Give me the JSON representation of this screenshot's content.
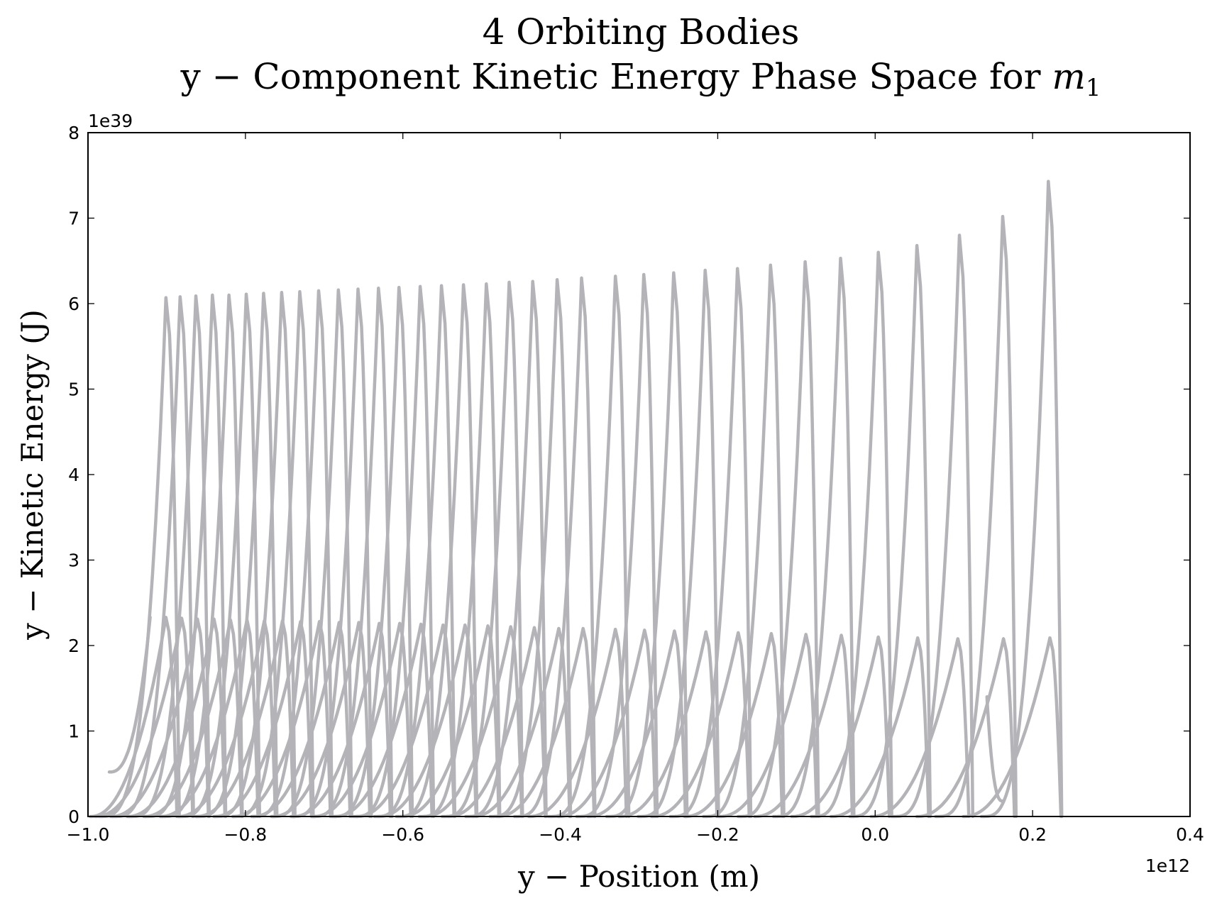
{
  "chart_data": {
    "type": "line",
    "title": "4 Orbiting Bodies",
    "subtitle_prefix": "y − Component Kinetic Energy Phase Space for ",
    "subtitle_var": "m",
    "subtitle_sub": "1",
    "xlabel": "y − Position (m)",
    "ylabel": "y − Kinetic Energy (J)",
    "x_offset_label": "1e12",
    "y_offset_label": "1e39",
    "x_scale": 1000000000000.0,
    "y_scale": 1e+39,
    "xlim": [
      -1.0,
      0.4
    ],
    "ylim": [
      0,
      8
    ],
    "x_ticks": [
      -1.0,
      -0.8,
      -0.6,
      -0.4,
      -0.2,
      0.0,
      0.2,
      0.4
    ],
    "x_tick_labels": [
      "−1.0",
      "−0.8",
      "−0.6",
      "−0.4",
      "−0.2",
      "0.0",
      "0.2",
      "0.4"
    ],
    "y_ticks": [
      0,
      1,
      2,
      3,
      4,
      5,
      6,
      7,
      8
    ],
    "y_tick_labels": [
      "0",
      "1",
      "2",
      "3",
      "4",
      "5",
      "6",
      "7",
      "8"
    ],
    "grid": false,
    "legend": "none",
    "color": "#b3b3b8",
    "series": [
      {
        "tall_peaks": [
          {
            "x": -0.901,
            "y": 6.07
          },
          {
            "x": -0.883,
            "y": 6.08
          },
          {
            "x": -0.863,
            "y": 6.09
          },
          {
            "x": -0.842,
            "y": 6.1
          },
          {
            "x": -0.821,
            "y": 6.1
          },
          {
            "x": -0.799,
            "y": 6.11
          },
          {
            "x": -0.777,
            "y": 6.12
          },
          {
            "x": -0.754,
            "y": 6.13
          },
          {
            "x": -0.731,
            "y": 6.14
          },
          {
            "x": -0.707,
            "y": 6.15
          },
          {
            "x": -0.682,
            "y": 6.16
          },
          {
            "x": -0.657,
            "y": 6.17
          },
          {
            "x": -0.631,
            "y": 6.18
          },
          {
            "x": -0.605,
            "y": 6.19
          },
          {
            "x": -0.578,
            "y": 6.2
          },
          {
            "x": -0.551,
            "y": 6.21
          },
          {
            "x": -0.523,
            "y": 6.22
          },
          {
            "x": -0.494,
            "y": 6.23
          },
          {
            "x": -0.465,
            "y": 6.25
          },
          {
            "x": -0.435,
            "y": 6.26
          },
          {
            "x": -0.404,
            "y": 6.28
          },
          {
            "x": -0.373,
            "y": 6.3
          },
          {
            "x": -0.33,
            "y": 6.32
          },
          {
            "x": -0.294,
            "y": 6.34
          },
          {
            "x": -0.256,
            "y": 6.36
          },
          {
            "x": -0.216,
            "y": 6.39
          },
          {
            "x": -0.175,
            "y": 6.41
          },
          {
            "x": -0.133,
            "y": 6.45
          },
          {
            "x": -0.089,
            "y": 6.49
          },
          {
            "x": -0.044,
            "y": 6.53
          },
          {
            "x": 0.004,
            "y": 6.6
          },
          {
            "x": 0.053,
            "y": 6.68
          },
          {
            "x": 0.107,
            "y": 6.8
          },
          {
            "x": 0.162,
            "y": 7.02
          },
          {
            "x": 0.22,
            "y": 7.43
          }
        ],
        "short_peaks": [
          {
            "x": -0.901,
            "y": 2.33
          },
          {
            "x": -0.881,
            "y": 2.32
          },
          {
            "x": -0.861,
            "y": 2.31
          },
          {
            "x": -0.84,
            "y": 2.31
          },
          {
            "x": -0.819,
            "y": 2.3
          },
          {
            "x": -0.798,
            "y": 2.3
          },
          {
            "x": -0.776,
            "y": 2.29
          },
          {
            "x": -0.753,
            "y": 2.29
          },
          {
            "x": -0.73,
            "y": 2.28
          },
          {
            "x": -0.706,
            "y": 2.28
          },
          {
            "x": -0.681,
            "y": 2.27
          },
          {
            "x": -0.656,
            "y": 2.27
          },
          {
            "x": -0.63,
            "y": 2.26
          },
          {
            "x": -0.604,
            "y": 2.26
          },
          {
            "x": -0.577,
            "y": 2.25
          },
          {
            "x": -0.549,
            "y": 2.24
          },
          {
            "x": -0.521,
            "y": 2.24
          },
          {
            "x": -0.492,
            "y": 2.23
          },
          {
            "x": -0.463,
            "y": 2.22
          },
          {
            "x": -0.433,
            "y": 2.21
          },
          {
            "x": -0.402,
            "y": 2.2
          },
          {
            "x": -0.371,
            "y": 2.2
          },
          {
            "x": -0.33,
            "y": 2.19
          },
          {
            "x": -0.293,
            "y": 2.18
          },
          {
            "x": -0.255,
            "y": 2.17
          },
          {
            "x": -0.215,
            "y": 2.16
          },
          {
            "x": -0.174,
            "y": 2.15
          },
          {
            "x": -0.132,
            "y": 2.14
          },
          {
            "x": -0.088,
            "y": 2.13
          },
          {
            "x": -0.043,
            "y": 2.12
          },
          {
            "x": 0.004,
            "y": 2.1
          },
          {
            "x": 0.054,
            "y": 2.09
          },
          {
            "x": 0.105,
            "y": 2.08
          },
          {
            "x": 0.163,
            "y": 2.08
          },
          {
            "x": 0.222,
            "y": 2.09
          }
        ],
        "start_points": [
          {
            "x": -0.973,
            "y": 0.52
          },
          {
            "x": 0.162,
            "y": 0.18
          }
        ]
      }
    ]
  }
}
